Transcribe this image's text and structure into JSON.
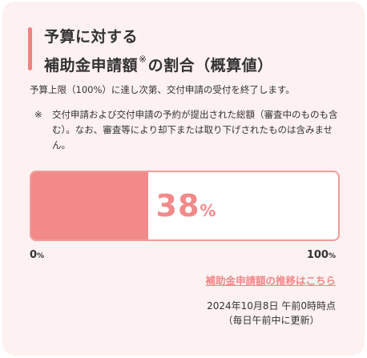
{
  "header": {
    "title_line1": "予算に対する",
    "title_line2_main": "補助金申請額",
    "title_line2_mark": "※",
    "title_line2_tail": "の割合（概算値）"
  },
  "lead_text": "予算上限（100%）に達し次第、交付申請の受付を終了します。",
  "note": {
    "mark": "※",
    "text": "交付申請および交付申請の予約が提出された総額（審査中のものも含む）。なお、審査等により却下または取り下げされたものは含みません。"
  },
  "progress": {
    "value": 38,
    "value_label": "38",
    "unit": "%",
    "min_label": "0",
    "max_label": "100",
    "axis_unit": "%",
    "fill_color": "#f28a8a",
    "border_color": "#f39b9b"
  },
  "history_link": "補助金申請額の推移はこちら",
  "updated": {
    "timestamp": "2024年10月8日 午前0時時点",
    "note": "（毎日午前中に更新）"
  }
}
